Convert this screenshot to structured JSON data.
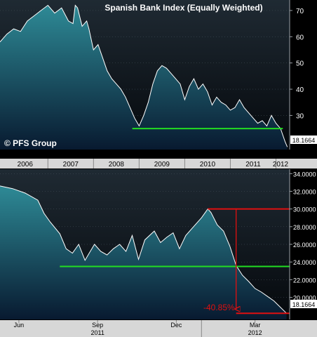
{
  "chart_data": [
    {
      "type": "area",
      "title": "Spanish Bank Index (Equally Weighted)",
      "watermark": "© PFS Group",
      "x_tick_labels": [
        "2006",
        "2007",
        "2008",
        "2009",
        "2010",
        "2011",
        "2012"
      ],
      "y_ticks": [
        30,
        40,
        50,
        60,
        70
      ],
      "y_tick_labels": [
        "30",
        "40",
        "50",
        "60",
        "70"
      ],
      "ylim": [
        17,
        74
      ],
      "xlim": [
        2005.95,
        2012.3
      ],
      "series": [
        {
          "x": [
            2005.95,
            2006.1,
            2006.25,
            2006.4,
            2006.55,
            2006.7,
            2006.85,
            2007.0,
            2007.15,
            2007.3,
            2007.45,
            2007.55,
            2007.6,
            2007.65,
            2007.75,
            2007.85,
            2007.9,
            2008.0,
            2008.1,
            2008.2,
            2008.3,
            2008.4,
            2008.5,
            2008.6,
            2008.7,
            2008.8,
            2008.9,
            2009.0,
            2009.1,
            2009.2,
            2009.3,
            2009.4,
            2009.5,
            2009.6,
            2009.7,
            2009.8,
            2009.9,
            2010.0,
            2010.1,
            2010.2,
            2010.3,
            2010.4,
            2010.5,
            2010.6,
            2010.7,
            2010.8,
            2010.9,
            2011.0,
            2011.1,
            2011.2,
            2011.3,
            2011.4,
            2011.5,
            2011.6,
            2011.7,
            2011.8,
            2011.9,
            2012.0,
            2012.1,
            2012.2,
            2012.25
          ],
          "y": [
            58,
            61,
            63,
            62,
            66,
            68,
            70,
            72,
            69,
            71,
            66,
            65,
            72,
            71,
            64,
            66,
            63,
            55,
            57,
            52,
            47,
            44,
            42,
            40,
            37,
            33,
            29,
            26,
            30,
            35,
            42,
            47,
            49,
            48,
            46,
            44,
            42,
            36,
            41,
            44,
            40,
            42,
            39,
            34,
            37,
            35,
            34,
            32,
            33,
            36,
            33,
            31,
            29,
            27,
            28,
            26,
            30,
            27,
            25,
            20,
            18
          ]
        }
      ],
      "reference_line": 25,
      "last_value_label": "18.1664",
      "colors": {
        "line": "#ffffff",
        "fill_top": "#2e8a96",
        "fill_bottom": "#081a30",
        "support": "#22dd22"
      }
    },
    {
      "type": "area",
      "x_tick_labels": [
        "Jun",
        "Sep",
        "Dec",
        "Mar"
      ],
      "year_labels": [
        "2011",
        "2012"
      ],
      "y_ticks": [
        20,
        22,
        24,
        26,
        28,
        30,
        32,
        34
      ],
      "y_tick_labels": [
        "20.0000",
        "22.0000",
        "24.0000",
        "26.0000",
        "28.0000",
        "30.0000",
        "32.0000",
        "34.0000"
      ],
      "ylim": [
        17.5,
        34.5
      ],
      "xlim": [
        2011.36,
        2012.28
      ],
      "series": [
        {
          "x": [
            2011.36,
            2011.4,
            2011.44,
            2011.48,
            2011.5,
            2011.52,
            2011.55,
            2011.57,
            2011.59,
            2011.61,
            2011.63,
            2011.66,
            2011.68,
            2011.7,
            2011.72,
            2011.74,
            2011.76,
            2011.78,
            2011.8,
            2011.82,
            2011.85,
            2011.87,
            2011.89,
            2011.91,
            2011.93,
            2011.95,
            2011.97,
            2012.0,
            2012.02,
            2012.03,
            2012.05,
            2012.07,
            2012.09,
            2012.11,
            2012.13,
            2012.15,
            2012.17,
            2012.19,
            2012.21,
            2012.23,
            2012.25,
            2012.27
          ],
          "y": [
            32.6,
            32.3,
            31.8,
            31.0,
            29.5,
            28.5,
            27.2,
            25.5,
            25.0,
            26.0,
            24.2,
            26.0,
            25.2,
            24.8,
            25.5,
            26.0,
            25.2,
            27.0,
            24.3,
            26.5,
            27.5,
            26.2,
            26.8,
            27.3,
            25.5,
            27.0,
            27.8,
            29.0,
            30.0,
            29.6,
            28.2,
            27.5,
            25.8,
            23.6,
            22.5,
            21.8,
            21.0,
            20.6,
            20.1,
            19.6,
            18.9,
            18.2
          ]
        }
      ],
      "support_level": 23.5,
      "peak_level": 30.0,
      "drop_label": "-40.85%",
      "last_value_label": "18.1664",
      "colors": {
        "line": "#ffffff",
        "fill_top": "#2e8a96",
        "fill_bottom": "#081a30",
        "support": "#22dd22",
        "drop": "#e01010"
      }
    }
  ]
}
